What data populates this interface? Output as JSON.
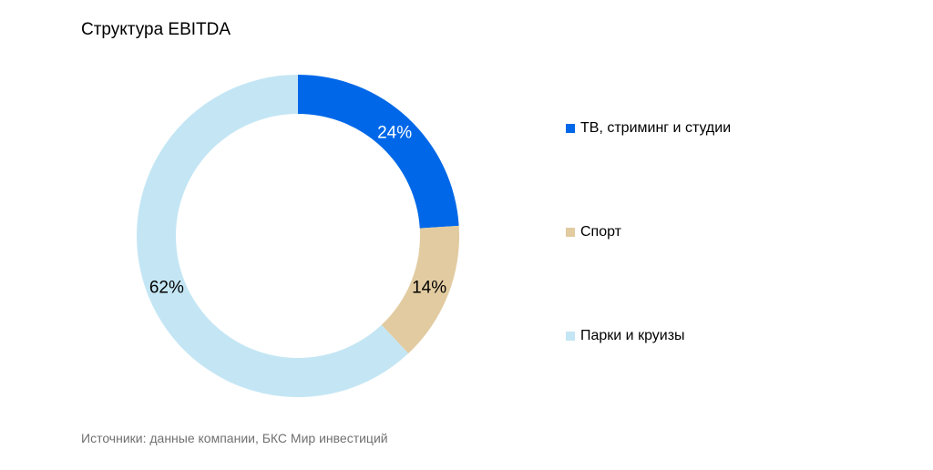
{
  "chart_data": {
    "type": "pie",
    "variant": "donut",
    "title": "Структура EBITDA",
    "categories": [
      "ТВ, стриминг и студии",
      "Спорт",
      "Парки и круизы"
    ],
    "values": [
      24,
      14,
      62
    ],
    "value_labels": [
      "24%",
      "14%",
      "62%"
    ],
    "unit": "%",
    "colors": [
      "#0068E8",
      "#E2CBA0",
      "#C4E6F4"
    ],
    "legend_position": "right",
    "start": "top, clockwise"
  },
  "source_note": "Источники: данные компании, БКС Мир инвестиций"
}
